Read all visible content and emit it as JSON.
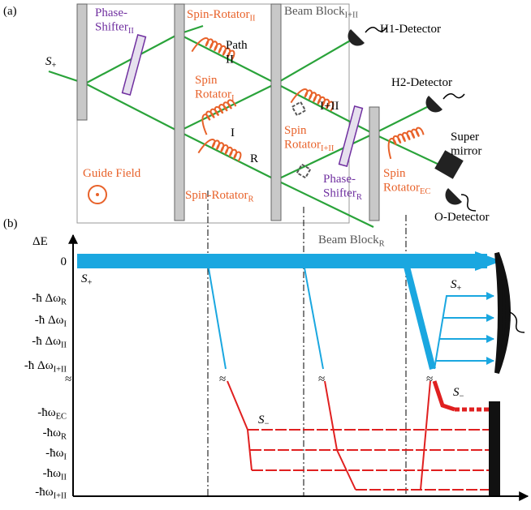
{
  "panel_a": {
    "label": "(a)",
    "items": [
      {
        "lines": [
          "Phase-",
          "Shifter"
        ],
        "sub": "II"
      },
      {
        "lines": [
          "Spin-Rotator"
        ],
        "sub": "II"
      },
      {
        "lines": [
          "Beam Block"
        ],
        "sub": "I+II"
      },
      {
        "lines": [
          "H1-Detector"
        ]
      },
      {
        "lines": [
          "S"
        ],
        "sub": "+"
      },
      {
        "lines": [
          "Path",
          "II"
        ]
      },
      {
        "lines": [
          "Spin",
          "Rotator"
        ],
        "sub": "I"
      },
      {
        "lines": [
          "I"
        ]
      },
      {
        "lines": [
          "R"
        ]
      },
      {
        "lines": [
          "I+II"
        ]
      },
      {
        "lines": [
          "H2-Detector"
        ]
      },
      {
        "lines": [
          "Spin",
          "Rotator"
        ],
        "sub": "I+II"
      },
      {
        "lines": [
          "Phase-",
          "Shifter"
        ],
        "sub": "R"
      },
      {
        "lines": [
          "Super",
          "mirror"
        ]
      },
      {
        "lines": [
          "Spin",
          "Rotator"
        ],
        "sub": "EC"
      },
      {
        "lines": [
          "Guide Field"
        ]
      },
      {
        "lines": [
          "Spin-Rotator"
        ],
        "sub": "R"
      },
      {
        "lines": [
          "O-Detector"
        ]
      },
      {
        "lines": [
          "Beam Block"
        ],
        "sub": "R"
      }
    ]
  },
  "panel_b": {
    "label": "(b)",
    "axis_label": "ΔE",
    "levels": [
      {
        "text": "0"
      },
      {
        "text": "-ħ Δω",
        "sub": "R"
      },
      {
        "text": "-ħ Δω",
        "sub": "I"
      },
      {
        "text": "-ħ Δω",
        "sub": "II"
      },
      {
        "text": "-ħ Δω",
        "sub": "I+II"
      },
      {
        "text": "-ħω",
        "sub": "EC"
      },
      {
        "text": "-ħω",
        "sub": "R"
      },
      {
        "text": "-ħω",
        "sub": "I"
      },
      {
        "text": "-ħω",
        "sub": "II"
      },
      {
        "text": "-ħω",
        "sub": "I+II"
      }
    ],
    "states": [
      {
        "text": "S",
        "sub": "+"
      },
      {
        "text": "S",
        "sub": "+"
      },
      {
        "text": "S",
        "sub": "−"
      },
      {
        "text": "S",
        "sub": "−"
      }
    ]
  }
}
